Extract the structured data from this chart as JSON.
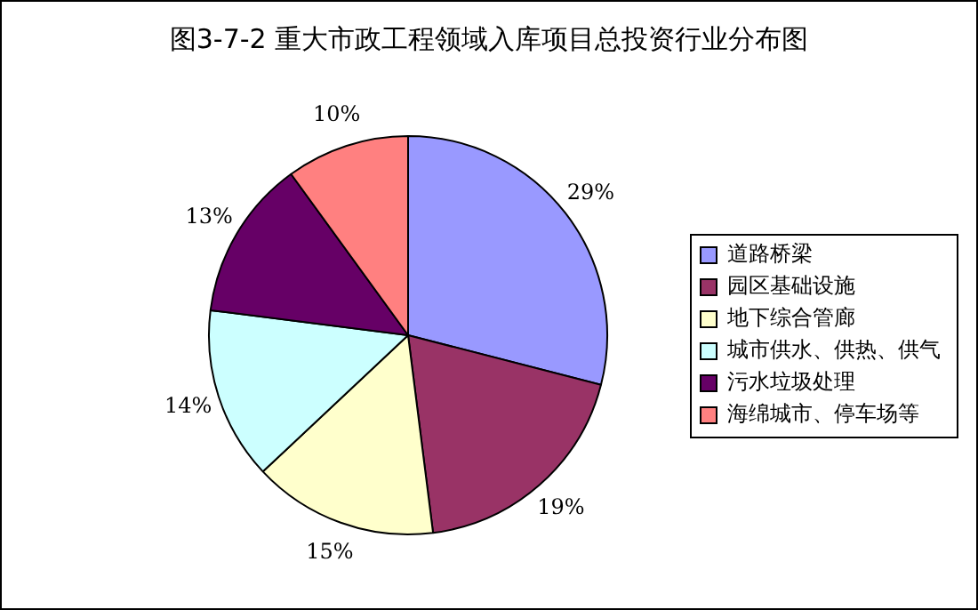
{
  "chart_data": {
    "type": "pie",
    "title": "图3-7-2 重大市政工程领域入库项目总投资行业分布图",
    "categories": [
      "道路桥梁",
      "园区基础设施",
      "地下综合管廊",
      "城市供水、供热、供气",
      "污水垃圾处理",
      "海绵城市、停车场等"
    ],
    "values": [
      29,
      19,
      15,
      14,
      13,
      10
    ],
    "value_labels": [
      "29%",
      "19%",
      "15%",
      "14%",
      "13%",
      "10%"
    ],
    "colors": [
      "#9999ff",
      "#993366",
      "#ffffcc",
      "#ccffff",
      "#660066",
      "#ff8080"
    ],
    "legend": "right"
  }
}
